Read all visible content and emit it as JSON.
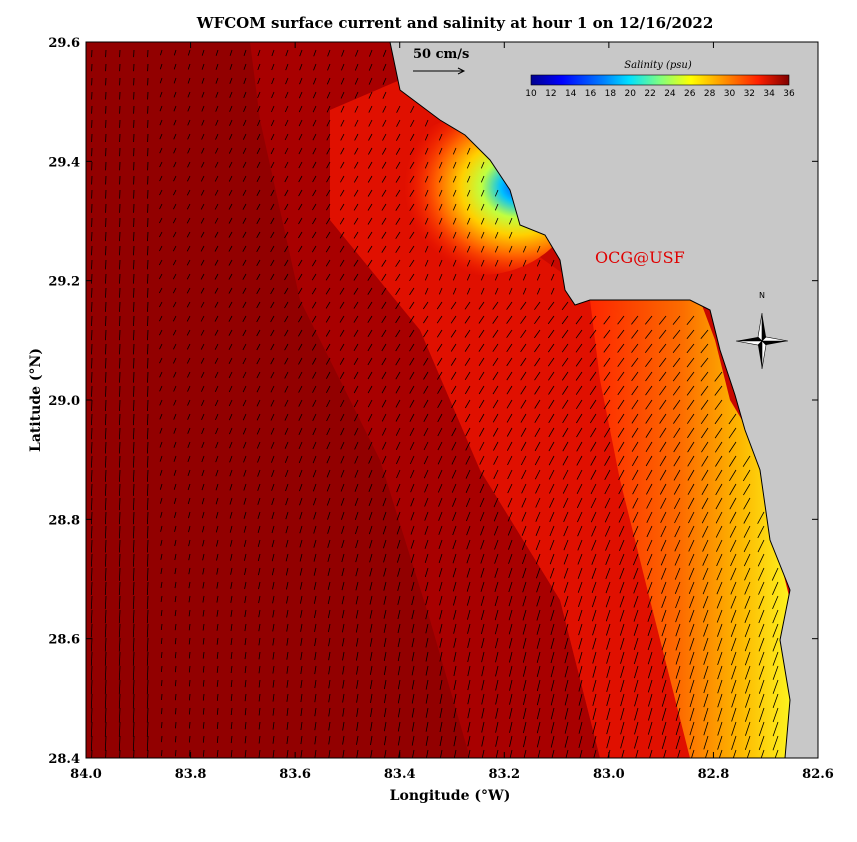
{
  "title": "WFCOM surface current and salinity at hour 1 on 12/16/2022",
  "x_axis": {
    "label": "Longitude (°W)",
    "ticks": [
      "84.0",
      "83.8",
      "83.6",
      "83.4",
      "83.2",
      "83.0",
      "82.8",
      "82.6"
    ]
  },
  "y_axis": {
    "label": "Latitude (°N)",
    "ticks": [
      "29.6",
      "29.4",
      "29.2",
      "29.0",
      "28.8",
      "28.6",
      "28.4"
    ]
  },
  "colorbar": {
    "title": "Salinity (psu)",
    "ticks": [
      "10",
      "12",
      "14",
      "16",
      "18",
      "20",
      "22",
      "24",
      "26",
      "28",
      "30",
      "32",
      "34",
      "36"
    ]
  },
  "scale_vector": {
    "label": "50 cm/s"
  },
  "credit": "OCG@USF",
  "compass": {
    "north_label": "N"
  },
  "colors": {
    "land": "#c8c8c8",
    "deep_sea": "#9a0000",
    "credit": "#e00000"
  },
  "map_extent": {
    "lon_west": 84.0,
    "lon_east": 82.6,
    "lat_south": 28.4,
    "lat_north": 29.6
  }
}
